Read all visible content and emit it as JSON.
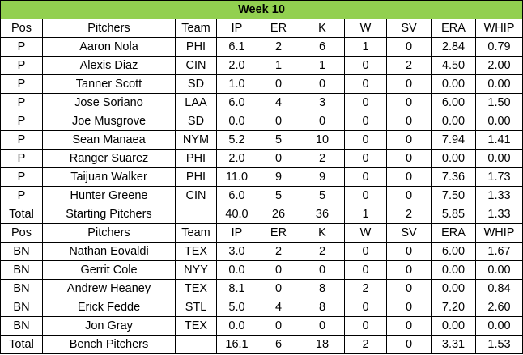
{
  "title": "Week 10",
  "colors": {
    "title_bg": "#92d050",
    "grid": "#000000"
  },
  "starters": {
    "header": [
      "Pos",
      "Pitchers",
      "Team",
      "IP",
      "ER",
      "K",
      "W",
      "SV",
      "ERA",
      "WHIP"
    ],
    "rows": [
      [
        "P",
        "Aaron Nola",
        "PHI",
        "6.1",
        "2",
        "6",
        "1",
        "0",
        "2.84",
        "0.79"
      ],
      [
        "P",
        "Alexis Diaz",
        "CIN",
        "2.0",
        "1",
        "1",
        "0",
        "2",
        "4.50",
        "2.00"
      ],
      [
        "P",
        "Tanner Scott",
        "SD",
        "1.0",
        "0",
        "0",
        "0",
        "0",
        "0.00",
        "0.00"
      ],
      [
        "P",
        "Jose Soriano",
        "LAA",
        "6.0",
        "4",
        "3",
        "0",
        "0",
        "6.00",
        "1.50"
      ],
      [
        "P",
        "Joe Musgrove",
        "SD",
        "0.0",
        "0",
        "0",
        "0",
        "0",
        "0.00",
        "0.00"
      ],
      [
        "P",
        "Sean Manaea",
        "NYM",
        "5.2",
        "5",
        "10",
        "0",
        "0",
        "7.94",
        "1.41"
      ],
      [
        "P",
        "Ranger Suarez",
        "PHI",
        "2.0",
        "0",
        "2",
        "0",
        "0",
        "0.00",
        "0.00"
      ],
      [
        "P",
        "Taijuan Walker",
        "PHI",
        "11.0",
        "9",
        "9",
        "0",
        "0",
        "7.36",
        "1.73"
      ],
      [
        "P",
        "Hunter Greene",
        "CIN",
        "6.0",
        "5",
        "5",
        "0",
        "0",
        "7.50",
        "1.33"
      ]
    ],
    "total": [
      "Total",
      "Starting Pitchers",
      "",
      "40.0",
      "26",
      "36",
      "1",
      "2",
      "5.85",
      "1.33"
    ]
  },
  "bench": {
    "header": [
      "Pos",
      "Pitchers",
      "Team",
      "IP",
      "ER",
      "K",
      "W",
      "SV",
      "ERA",
      "WHIP"
    ],
    "rows": [
      [
        "BN",
        "Nathan Eovaldi",
        "TEX",
        "3.0",
        "2",
        "2",
        "0",
        "0",
        "6.00",
        "1.67"
      ],
      [
        "BN",
        "Gerrit Cole",
        "NYY",
        "0.0",
        "0",
        "0",
        "0",
        "0",
        "0.00",
        "0.00"
      ],
      [
        "BN",
        "Andrew Heaney",
        "TEX",
        "8.1",
        "0",
        "8",
        "2",
        "0",
        "0.00",
        "0.84"
      ],
      [
        "BN",
        "Erick Fedde",
        "STL",
        "5.0",
        "4",
        "8",
        "0",
        "0",
        "7.20",
        "2.60"
      ],
      [
        "BN",
        "Jon Gray",
        "TEX",
        "0.0",
        "0",
        "0",
        "0",
        "0",
        "0.00",
        "0.00"
      ]
    ],
    "total": [
      "Total",
      "Bench Pitchers",
      "",
      "16.1",
      "6",
      "18",
      "2",
      "0",
      "3.31",
      "1.53"
    ]
  }
}
